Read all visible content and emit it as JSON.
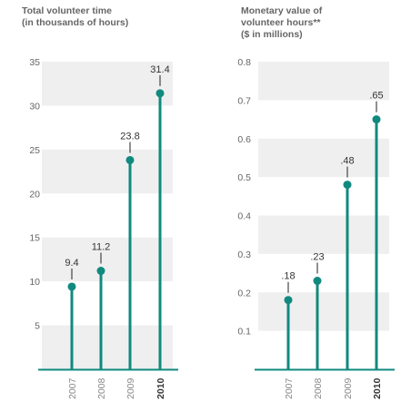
{
  "colors": {
    "stem": "#108a7f",
    "band": "#efefef",
    "axis": "#108a7f",
    "text": "#666666",
    "label": "#333333"
  },
  "chart_data": [
    {
      "type": "bar",
      "style": "lollipop",
      "title": "Total volunteer time\n(in thousands of hours)",
      "categories": [
        "2007",
        "2008",
        "2009",
        "2010"
      ],
      "values": [
        9.4,
        11.2,
        23.8,
        31.4
      ],
      "value_labels": [
        "9.4",
        "11.2",
        "23.8",
        "31.4"
      ],
      "bold_categories": [
        "2010"
      ],
      "ylim": [
        0,
        35
      ],
      "yticks": [
        5,
        10,
        15,
        20,
        25,
        30,
        35
      ],
      "ytick_labels": [
        "5",
        "10",
        "15",
        "20",
        "25",
        "30",
        "35"
      ],
      "grid": "alternating bands"
    },
    {
      "type": "bar",
      "style": "lollipop",
      "title": "Monetary value of\nvolunteer hours**\n($ in millions)",
      "categories": [
        "2007",
        "2008",
        "2009",
        "2010"
      ],
      "values": [
        0.18,
        0.23,
        0.48,
        0.65
      ],
      "value_labels": [
        ".18",
        ".23",
        ".48",
        ".65"
      ],
      "bold_categories": [
        "2010"
      ],
      "ylim": [
        0,
        0.8
      ],
      "yticks": [
        0.1,
        0.2,
        0.3,
        0.4,
        0.5,
        0.6,
        0.7,
        0.8
      ],
      "ytick_labels": [
        "0.1",
        "0.2",
        "0.3",
        "0.4",
        "0.5",
        "0.6",
        "0.7",
        "0.8"
      ],
      "grid": "alternating bands"
    }
  ]
}
